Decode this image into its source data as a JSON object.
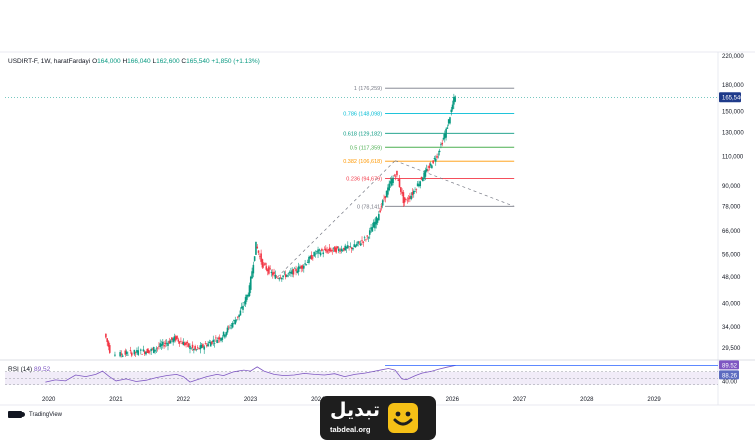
{
  "header": {
    "symbol": "USDIRT-F, 1W, haratFardayi",
    "open_label": "O",
    "open": "164,000",
    "high_label": "H",
    "high": "166,040",
    "low_label": "L",
    "low": "162,600",
    "close_label": "C",
    "close": "165,540",
    "change": "+1,850 (+1.13%)"
  },
  "rsi_header": {
    "name": "RSI (14)",
    "value": "89.52"
  },
  "footer": {
    "tradingview": "TradingView"
  },
  "brand": {
    "name": "تبدیل",
    "url": "tabdeal.org"
  },
  "colors": {
    "up": "#089981",
    "down": "#f23645",
    "rsi_line": "#7e57c2",
    "rsi_band": "#ede7f6",
    "price_badge": "#1e3a8a",
    "rsi_badge": "#7e57c2",
    "accent": "#f5c016"
  },
  "chart_data": [
    {
      "type": "candlestick",
      "x": [
        "2020",
        "2021",
        "2022",
        "2023",
        "2024",
        "2025",
        "2026",
        "2027",
        "2028",
        "2029"
      ],
      "y_ticks": [
        "220,000",
        "180,000",
        "150,000",
        "130,000",
        "110,000",
        "90,000",
        "78,000",
        "66,000",
        "56,000",
        "48,000",
        "40,000",
        "34,000",
        "29,500"
      ],
      "y_tick_values": [
        220000,
        180000,
        150000,
        130000,
        110000,
        90000,
        78000,
        66000,
        56000,
        48000,
        40000,
        34000,
        29500
      ],
      "ylim": [
        27500,
        220000
      ],
      "scale": "log",
      "last_price": "165,540",
      "trend": [
        {
          "x": 2020.85,
          "y": 32500
        },
        {
          "x": 2020.95,
          "y": 28000
        },
        {
          "x": 2021.55,
          "y": 29000
        },
        {
          "x": 2021.9,
          "y": 31500
        },
        {
          "x": 2022.2,
          "y": 29000
        },
        {
          "x": 2022.6,
          "y": 32000
        },
        {
          "x": 2022.85,
          "y": 37000
        },
        {
          "x": 2023.0,
          "y": 44000
        },
        {
          "x": 2023.1,
          "y": 60000
        },
        {
          "x": 2023.2,
          "y": 52000
        },
        {
          "x": 2023.4,
          "y": 48000
        },
        {
          "x": 2023.6,
          "y": 49000
        },
        {
          "x": 2023.8,
          "y": 52000
        },
        {
          "x": 2024.0,
          "y": 57000
        },
        {
          "x": 2024.3,
          "y": 58000
        },
        {
          "x": 2024.55,
          "y": 59000
        },
        {
          "x": 2024.75,
          "y": 63000
        },
        {
          "x": 2024.9,
          "y": 72000
        },
        {
          "x": 2025.0,
          "y": 82000
        },
        {
          "x": 2025.1,
          "y": 92000
        },
        {
          "x": 2025.18,
          "y": 98000
        },
        {
          "x": 2025.25,
          "y": 88000
        },
        {
          "x": 2025.3,
          "y": 80000
        },
        {
          "x": 2025.42,
          "y": 85000
        },
        {
          "x": 2025.55,
          "y": 94000
        },
        {
          "x": 2025.7,
          "y": 104000
        },
        {
          "x": 2025.8,
          "y": 112000
        },
        {
          "x": 2025.92,
          "y": 130000
        },
        {
          "x": 2026.0,
          "y": 150000
        },
        {
          "x": 2026.05,
          "y": 165540
        }
      ],
      "fibonacci": [
        {
          "label": "1 (176,259)",
          "value": 176259,
          "color": "#787b86"
        },
        {
          "label": "0.786 (148,098)",
          "value": 148098,
          "color": "#00bcd4"
        },
        {
          "label": "0.618 (129,182)",
          "value": 129182,
          "color": "#089981"
        },
        {
          "label": "0.5 (117,359)",
          "value": 117359,
          "color": "#4caf50"
        },
        {
          "label": "0.382 (106,618)",
          "value": 106618,
          "color": "#ff9800"
        },
        {
          "label": "0.236 (94,679)",
          "value": 94679,
          "color": "#f23645"
        },
        {
          "label": "0 (78,141)",
          "value": 78141,
          "color": "#787b86"
        }
      ]
    },
    {
      "type": "line",
      "name": "RSI (14)",
      "y_ticks": [
        "60.00",
        "40.00"
      ],
      "y_tick_values": [
        60,
        40
      ],
      "ylim": [
        20,
        100
      ],
      "band": [
        30,
        70
      ],
      "current": "89.52",
      "second_value": "88.26",
      "values": [
        [
          2019.95,
          38
        ],
        [
          2020.1,
          45
        ],
        [
          2020.25,
          42
        ],
        [
          2020.4,
          60
        ],
        [
          2020.55,
          55
        ],
        [
          2020.7,
          62
        ],
        [
          2020.8,
          72
        ],
        [
          2020.9,
          55
        ],
        [
          2021.0,
          42
        ],
        [
          2021.15,
          48
        ],
        [
          2021.3,
          40
        ],
        [
          2021.45,
          44
        ],
        [
          2021.6,
          52
        ],
        [
          2021.75,
          58
        ],
        [
          2021.9,
          62
        ],
        [
          2022.0,
          55
        ],
        [
          2022.1,
          38
        ],
        [
          2022.2,
          45
        ],
        [
          2022.35,
          55
        ],
        [
          2022.5,
          62
        ],
        [
          2022.6,
          58
        ],
        [
          2022.75,
          70
        ],
        [
          2022.9,
          75
        ],
        [
          2023.0,
          72
        ],
        [
          2023.1,
          85
        ],
        [
          2023.2,
          72
        ],
        [
          2023.35,
          62
        ],
        [
          2023.5,
          58
        ],
        [
          2023.65,
          60
        ],
        [
          2023.8,
          65
        ],
        [
          2023.95,
          62
        ],
        [
          2024.1,
          60
        ],
        [
          2024.25,
          64
        ],
        [
          2024.4,
          55
        ],
        [
          2024.55,
          62
        ],
        [
          2024.7,
          66
        ],
        [
          2024.85,
          72
        ],
        [
          2024.95,
          76
        ],
        [
          2025.05,
          80
        ],
        [
          2025.15,
          75
        ],
        [
          2025.25,
          48
        ],
        [
          2025.32,
          46
        ],
        [
          2025.45,
          58
        ],
        [
          2025.55,
          66
        ],
        [
          2025.7,
          72
        ],
        [
          2025.8,
          78
        ],
        [
          2025.92,
          84
        ],
        [
          2026.05,
          89.52
        ]
      ]
    }
  ]
}
